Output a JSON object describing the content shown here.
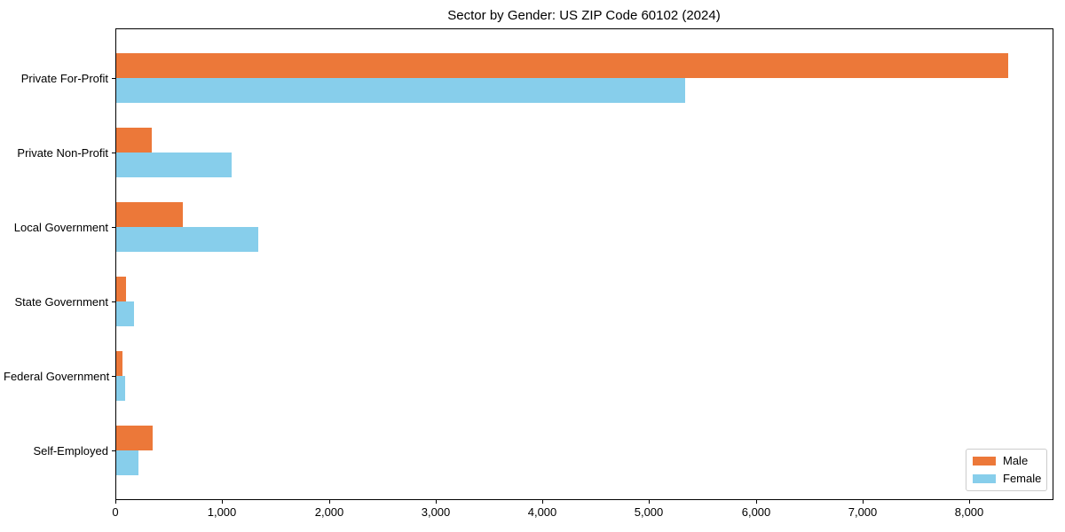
{
  "title": "Sector by Gender: US ZIP Code 60102 (2024)",
  "chart_data": {
    "type": "bar",
    "orientation": "horizontal",
    "title": "Sector by Gender: US ZIP Code 60102 (2024)",
    "xlabel": "",
    "ylabel": "",
    "categories": [
      "Private For-Profit",
      "Private Non-Profit",
      "Local Government",
      "State Government",
      "Federal Government",
      "Self-Employed"
    ],
    "series": [
      {
        "name": "Male",
        "color": "#EC7839",
        "values": [
          8360,
          330,
          620,
          90,
          60,
          340
        ]
      },
      {
        "name": "Female",
        "color": "#87CEEB",
        "values": [
          5330,
          1080,
          1330,
          170,
          80,
          210
        ]
      }
    ],
    "xlim": [
      0,
      8780
    ],
    "xticks": [
      0,
      1000,
      2000,
      3000,
      4000,
      5000,
      6000,
      7000,
      8000
    ],
    "xtick_labels": [
      "0",
      "1,000",
      "2,000",
      "3,000",
      "4,000",
      "5,000",
      "6,000",
      "7,000",
      "8,000"
    ],
    "grid": false,
    "legend": {
      "position": "lower right",
      "entries": [
        "Male",
        "Female"
      ]
    }
  }
}
